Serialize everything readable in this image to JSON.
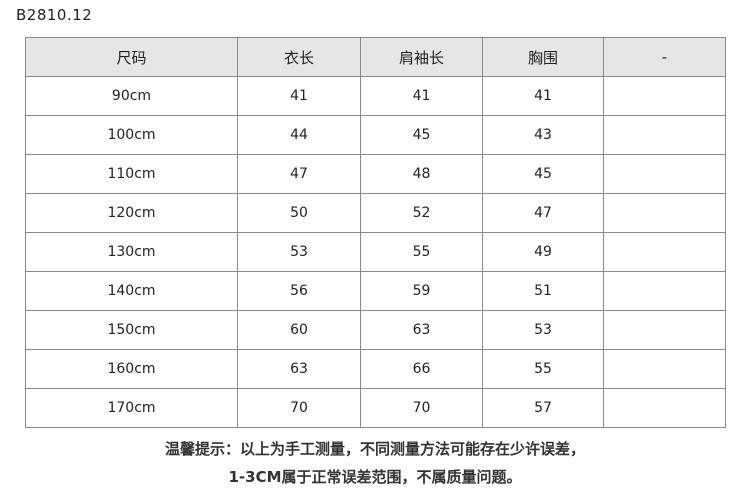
{
  "product_code": "B2810.12",
  "table": {
    "headers": [
      "尺码",
      "衣长",
      "肩袖长",
      "胸围",
      "-"
    ],
    "rows": [
      [
        "90cm",
        "41",
        "41",
        "41",
        ""
      ],
      [
        "100cm",
        "44",
        "45",
        "43",
        ""
      ],
      [
        "110cm",
        "47",
        "48",
        "45",
        ""
      ],
      [
        "120cm",
        "50",
        "52",
        "47",
        ""
      ],
      [
        "130cm",
        "53",
        "55",
        "49",
        ""
      ],
      [
        "140cm",
        "56",
        "59",
        "51",
        ""
      ],
      [
        "150cm",
        "60",
        "63",
        "53",
        ""
      ],
      [
        "160cm",
        "63",
        "66",
        "55",
        ""
      ],
      [
        "170cm",
        "70",
        "70",
        "57",
        ""
      ]
    ]
  },
  "note": {
    "line1": "温馨提示：以上为手工测量，不同测量方法可能存在少许误差，",
    "line2": "1-3CM属于正常误差范围，不属质量问题。"
  }
}
